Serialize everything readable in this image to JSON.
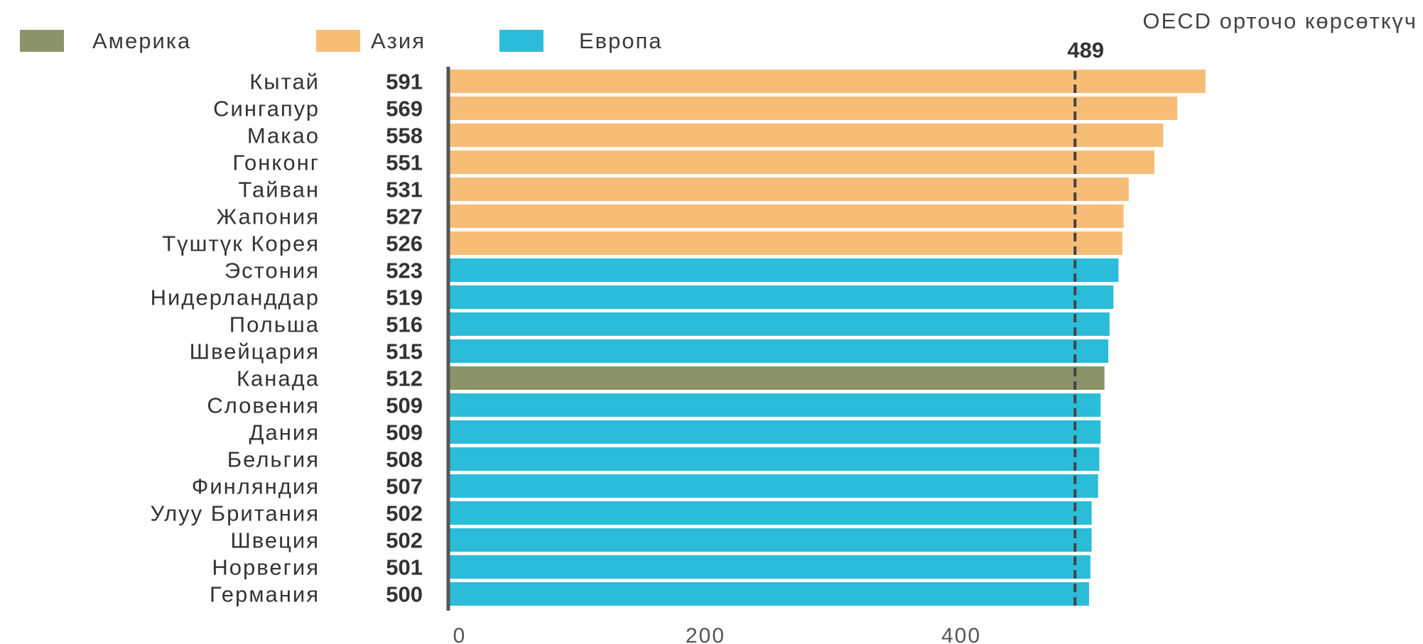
{
  "colors": {
    "Америка": "#8a9468",
    "Азия": "#f7bd76",
    "Европа": "#2bbcd9",
    "axis": "#555555",
    "reference_line": "#444444"
  },
  "chart_data": {
    "type": "bar",
    "orientation": "horizontal",
    "legend": {
      "position": "top-left",
      "entries": [
        "Америка",
        "Азия",
        "Европа"
      ]
    },
    "categories": [
      "Кытай",
      "Сингапур",
      "Макао",
      "Гонконг",
      "Тайван",
      "Жапония",
      "Түштүк Корея",
      "Эстония",
      "Нидерланддар",
      "Польша",
      "Швейцария",
      "Канада",
      "Словения",
      "Дания",
      "Бельгия",
      "Финляндия",
      "Улуу Британия",
      "Швеция",
      "Норвегия",
      "Германия"
    ],
    "values": [
      591,
      569,
      558,
      551,
      531,
      527,
      526,
      523,
      519,
      516,
      515,
      512,
      509,
      509,
      508,
      507,
      502,
      502,
      501,
      500
    ],
    "groups": [
      "Азия",
      "Азия",
      "Азия",
      "Азия",
      "Азия",
      "Азия",
      "Азия",
      "Европа",
      "Европа",
      "Европа",
      "Европа",
      "Америка",
      "Европа",
      "Европа",
      "Европа",
      "Европа",
      "Европа",
      "Европа",
      "Европа",
      "Европа"
    ],
    "reference_line": {
      "label": "OECD орточо көрсөткүч",
      "value": 489,
      "value_label": "489"
    },
    "xlim": [
      0,
      600
    ],
    "xticks": [
      0,
      200,
      400
    ],
    "xtick_labels": [
      "0",
      "200",
      "400"
    ],
    "grid": false
  }
}
